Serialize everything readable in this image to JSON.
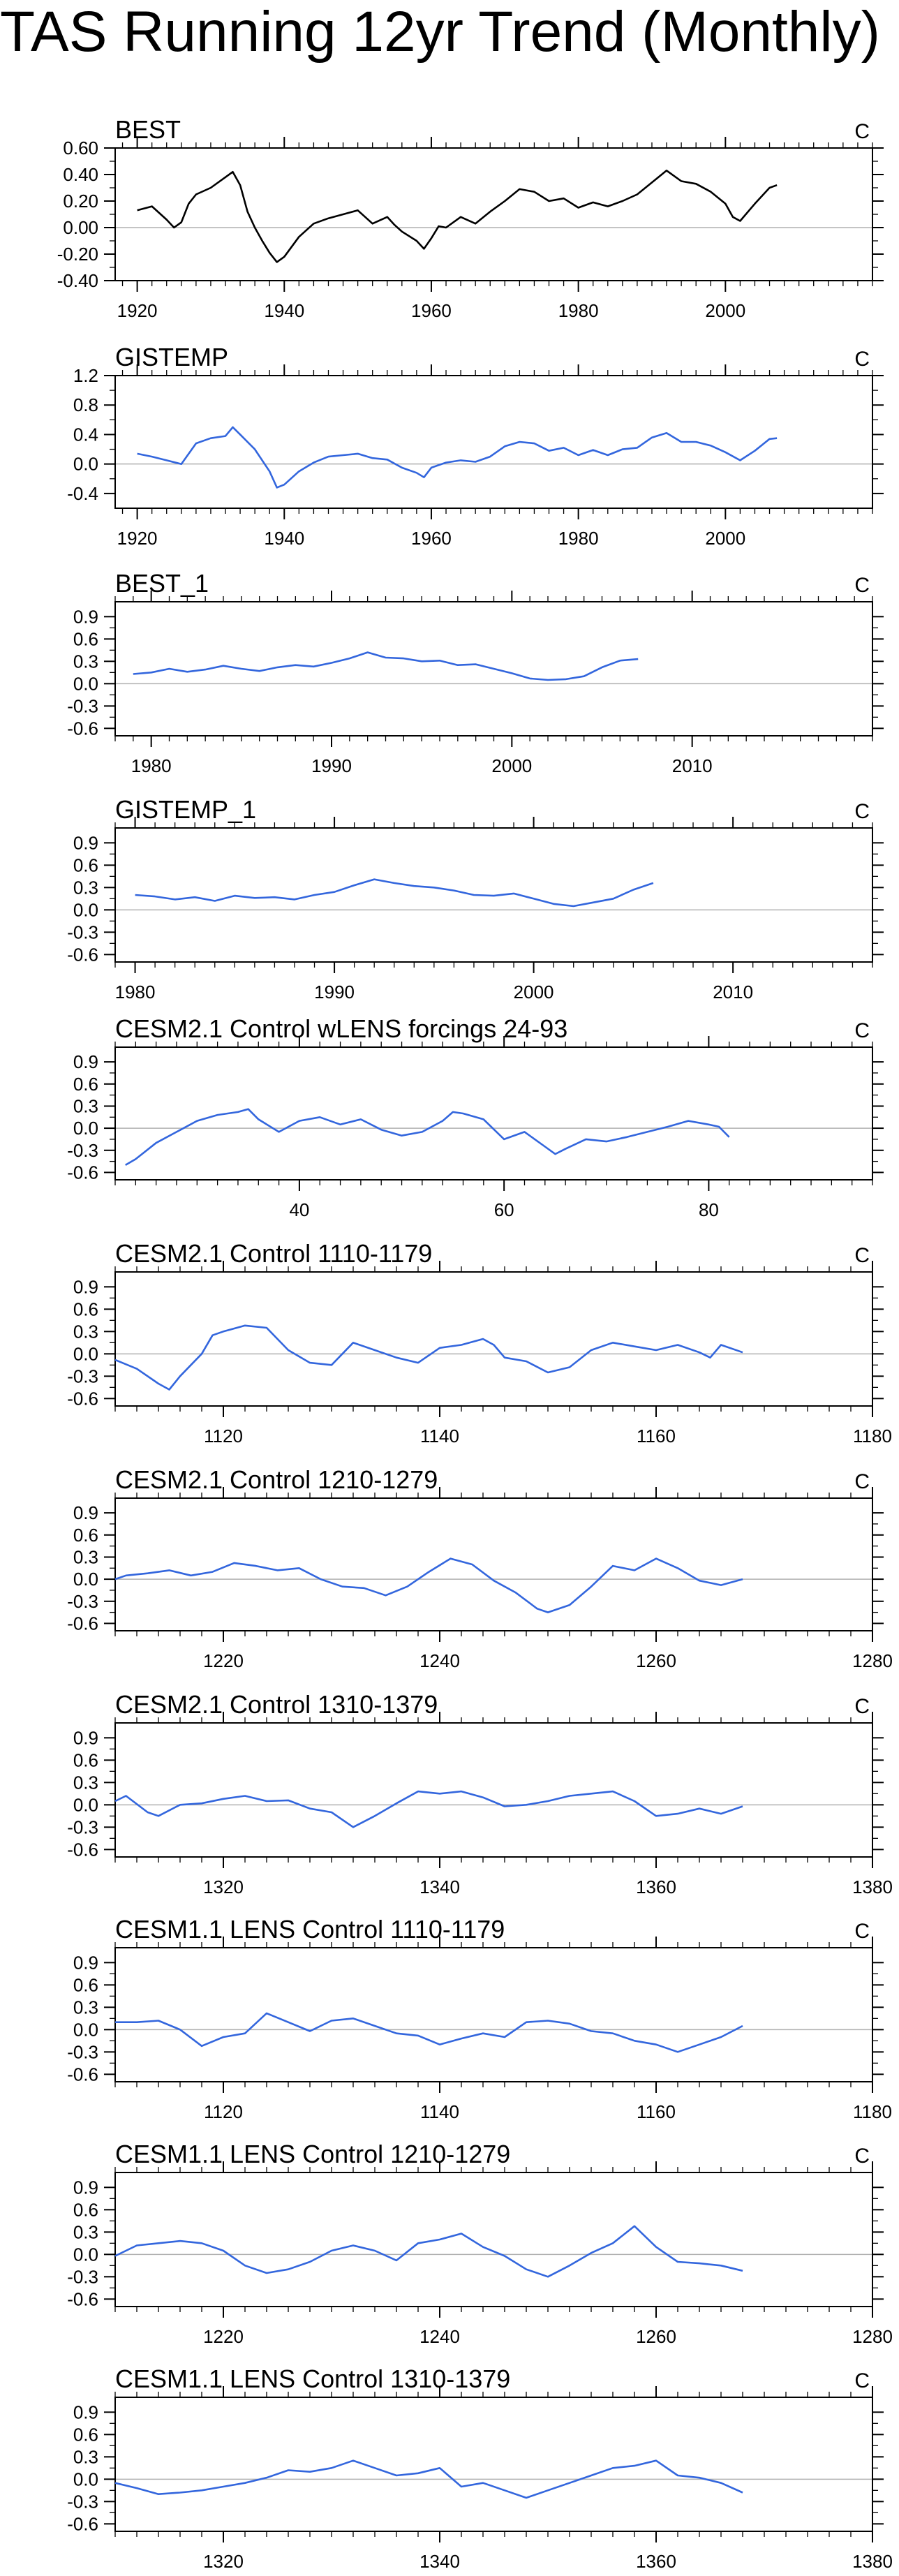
{
  "title": "TAS Running 12yr Trend (Monthly)",
  "colors": {
    "observed_line": "#000000",
    "model_line": "#3366dd",
    "zero_line": "#b0b0b0",
    "frame": "#000000"
  },
  "chart_data": [
    {
      "type": "line",
      "title": "BEST",
      "units_label": "C",
      "xlim": [
        1917,
        2020
      ],
      "ylim": [
        -0.4,
        0.6
      ],
      "xticks": [
        1920,
        1940,
        1960,
        1980,
        2000
      ],
      "yticks": [
        -0.4,
        -0.2,
        0.0,
        0.2,
        0.4,
        0.6
      ],
      "ytick_labels": [
        "-0.40",
        "-0.20",
        "0.00",
        "0.20",
        "0.40",
        "0.60"
      ],
      "line_color": "#000000",
      "x": [
        1920,
        1922,
        1924,
        1925,
        1926,
        1927,
        1928,
        1930,
        1932,
        1933,
        1934,
        1935,
        1936,
        1937,
        1938,
        1939,
        1940,
        1942,
        1944,
        1946,
        1948,
        1950,
        1952,
        1954,
        1955,
        1956,
        1958,
        1959,
        1960,
        1961,
        1962,
        1964,
        1966,
        1968,
        1970,
        1972,
        1974,
        1976,
        1978,
        1980,
        1982,
        1984,
        1986,
        1988,
        1990,
        1992,
        1994,
        1996,
        1998,
        2000,
        2001,
        2002,
        2004,
        2006,
        2007
      ],
      "y": [
        0.13,
        0.16,
        0.06,
        0.0,
        0.04,
        0.18,
        0.25,
        0.3,
        0.38,
        0.42,
        0.32,
        0.12,
        0.0,
        -0.1,
        -0.19,
        -0.26,
        -0.22,
        -0.07,
        0.03,
        0.07,
        0.1,
        0.13,
        0.03,
        0.08,
        0.02,
        -0.03,
        -0.1,
        -0.16,
        -0.08,
        0.01,
        0.0,
        0.08,
        0.03,
        0.12,
        0.2,
        0.29,
        0.27,
        0.2,
        0.22,
        0.15,
        0.19,
        0.16,
        0.2,
        0.25,
        0.34,
        0.43,
        0.35,
        0.33,
        0.27,
        0.18,
        0.08,
        0.05,
        0.18,
        0.3,
        0.32
      ]
    },
    {
      "type": "line",
      "title": "GISTEMP",
      "units_label": "C",
      "xlim": [
        1917,
        2020
      ],
      "ylim": [
        -0.6,
        1.2
      ],
      "xticks": [
        1920,
        1940,
        1960,
        1980,
        2000
      ],
      "yticks": [
        -0.4,
        0.0,
        0.4,
        0.8,
        1.2
      ],
      "ytick_labels": [
        "-0.4",
        "0.0",
        "0.4",
        "0.8",
        "1.2"
      ],
      "line_color": "#3366dd",
      "x": [
        1920,
        1922,
        1924,
        1926,
        1928,
        1930,
        1932,
        1933,
        1934,
        1936,
        1938,
        1939,
        1940,
        1942,
        1944,
        1946,
        1948,
        1950,
        1952,
        1954,
        1956,
        1958,
        1959,
        1960,
        1962,
        1964,
        1966,
        1968,
        1970,
        1972,
        1974,
        1976,
        1978,
        1980,
        1982,
        1984,
        1986,
        1988,
        1990,
        1992,
        1994,
        1996,
        1998,
        2000,
        2002,
        2004,
        2006,
        2007
      ],
      "y": [
        0.14,
        0.1,
        0.05,
        0.0,
        0.28,
        0.35,
        0.38,
        0.5,
        0.4,
        0.2,
        -0.1,
        -0.32,
        -0.28,
        -0.1,
        0.02,
        0.1,
        0.12,
        0.14,
        0.08,
        0.06,
        -0.05,
        -0.12,
        -0.18,
        -0.05,
        0.02,
        0.05,
        0.03,
        0.1,
        0.24,
        0.3,
        0.28,
        0.18,
        0.22,
        0.12,
        0.19,
        0.12,
        0.2,
        0.22,
        0.36,
        0.42,
        0.3,
        0.3,
        0.25,
        0.16,
        0.05,
        0.18,
        0.34,
        0.35
      ]
    },
    {
      "type": "line",
      "title": "BEST_1",
      "units_label": "C",
      "xlim": [
        1978,
        2020
      ],
      "ylim": [
        -0.7,
        1.1
      ],
      "xticks": [
        1980,
        1990,
        2000,
        2010
      ],
      "yticks": [
        -0.6,
        -0.3,
        0.0,
        0.3,
        0.6,
        0.9
      ],
      "ytick_labels": [
        "-0.6",
        "-0.3",
        "0.0",
        "0.3",
        "0.6",
        "0.9"
      ],
      "line_color": "#3366dd",
      "x": [
        1979,
        1980,
        1981,
        1982,
        1983,
        1984,
        1985,
        1986,
        1987,
        1988,
        1989,
        1990,
        1991,
        1992,
        1993,
        1994,
        1995,
        1996,
        1997,
        1998,
        1999,
        2000,
        2001,
        2002,
        2003,
        2004,
        2005,
        2006,
        2007
      ],
      "y": [
        0.13,
        0.15,
        0.2,
        0.16,
        0.19,
        0.24,
        0.2,
        0.17,
        0.22,
        0.25,
        0.23,
        0.28,
        0.34,
        0.42,
        0.35,
        0.34,
        0.3,
        0.31,
        0.25,
        0.26,
        0.2,
        0.14,
        0.07,
        0.05,
        0.06,
        0.1,
        0.22,
        0.31,
        0.33
      ]
    },
    {
      "type": "line",
      "title": "GISTEMP_1",
      "units_label": "C",
      "xlim": [
        1979,
        2017
      ],
      "ylim": [
        -0.7,
        1.1
      ],
      "xticks": [
        1980,
        1990,
        2000,
        2010
      ],
      "yticks": [
        -0.6,
        -0.3,
        0.0,
        0.3,
        0.6,
        0.9
      ],
      "ytick_labels": [
        "-0.6",
        "-0.3",
        "0.0",
        "0.3",
        "0.6",
        "0.9"
      ],
      "line_color": "#3366dd",
      "x": [
        1980,
        1981,
        1982,
        1983,
        1984,
        1985,
        1986,
        1987,
        1988,
        1989,
        1990,
        1991,
        1992,
        1993,
        1994,
        1995,
        1996,
        1997,
        1998,
        1999,
        2000,
        2001,
        2002,
        2003,
        2004,
        2005,
        2006
      ],
      "y": [
        0.2,
        0.18,
        0.14,
        0.17,
        0.12,
        0.19,
        0.16,
        0.17,
        0.14,
        0.2,
        0.24,
        0.33,
        0.41,
        0.36,
        0.32,
        0.3,
        0.26,
        0.2,
        0.19,
        0.22,
        0.15,
        0.08,
        0.05,
        0.1,
        0.15,
        0.27,
        0.36
      ]
    },
    {
      "type": "line",
      "title": "CESM2.1 Control wLENS forcings 24-93",
      "units_label": "C",
      "xlim": [
        22,
        96
      ],
      "ylim": [
        -0.7,
        1.1
      ],
      "xticks": [
        40,
        60,
        80
      ],
      "yticks": [
        -0.6,
        -0.3,
        0.0,
        0.3,
        0.6,
        0.9
      ],
      "ytick_labels": [
        "-0.6",
        "-0.3",
        "0.0",
        "0.3",
        "0.6",
        "0.9"
      ],
      "line_color": "#3366dd",
      "x": [
        23,
        24,
        26,
        28,
        30,
        32,
        34,
        35,
        36,
        38,
        40,
        42,
        44,
        46,
        48,
        50,
        52,
        54,
        55,
        56,
        58,
        60,
        62,
        64,
        65,
        66,
        68,
        70,
        72,
        74,
        76,
        78,
        80,
        81,
        82
      ],
      "y": [
        -0.5,
        -0.42,
        -0.2,
        -0.05,
        0.1,
        0.18,
        0.22,
        0.26,
        0.12,
        -0.05,
        0.1,
        0.15,
        0.05,
        0.12,
        -0.02,
        -0.1,
        -0.05,
        0.1,
        0.22,
        0.2,
        0.12,
        -0.15,
        -0.05,
        -0.25,
        -0.35,
        -0.28,
        -0.15,
        -0.18,
        -0.12,
        -0.05,
        0.02,
        0.1,
        0.05,
        0.02,
        -0.12
      ]
    },
    {
      "type": "line",
      "title": "CESM2.1 Control 1110-1179",
      "units_label": "C",
      "xlim": [
        1110,
        1180
      ],
      "ylim": [
        -0.7,
        1.1
      ],
      "xticks": [
        1120,
        1140,
        1160,
        1180
      ],
      "yticks": [
        -0.6,
        -0.3,
        0.0,
        0.3,
        0.6,
        0.9
      ],
      "ytick_labels": [
        "-0.6",
        "-0.3",
        "0.0",
        "0.3",
        "0.6",
        "0.9"
      ],
      "line_color": "#3366dd",
      "x": [
        1110,
        1112,
        1114,
        1115,
        1116,
        1118,
        1119,
        1120,
        1122,
        1124,
        1126,
        1128,
        1130,
        1132,
        1134,
        1136,
        1138,
        1140,
        1142,
        1144,
        1145,
        1146,
        1148,
        1150,
        1152,
        1154,
        1156,
        1158,
        1160,
        1162,
        1164,
        1165,
        1166,
        1168
      ],
      "y": [
        -0.08,
        -0.2,
        -0.4,
        -0.48,
        -0.3,
        0.0,
        0.25,
        0.3,
        0.38,
        0.35,
        0.05,
        -0.12,
        -0.15,
        0.15,
        0.05,
        -0.05,
        -0.12,
        0.08,
        0.12,
        0.2,
        0.12,
        -0.05,
        -0.1,
        -0.25,
        -0.18,
        0.05,
        0.15,
        0.1,
        0.05,
        0.12,
        0.02,
        -0.05,
        0.12,
        0.02
      ]
    },
    {
      "type": "line",
      "title": "CESM2.1 Control 1210-1279",
      "units_label": "C",
      "xlim": [
        1210,
        1280
      ],
      "ylim": [
        -0.7,
        1.1
      ],
      "xticks": [
        1220,
        1240,
        1260,
        1280
      ],
      "yticks": [
        -0.6,
        -0.3,
        0.0,
        0.3,
        0.6,
        0.9
      ],
      "ytick_labels": [
        "-0.6",
        "-0.3",
        "0.0",
        "0.3",
        "0.6",
        "0.9"
      ],
      "line_color": "#3366dd",
      "x": [
        1210,
        1211,
        1213,
        1215,
        1217,
        1219,
        1221,
        1223,
        1225,
        1227,
        1229,
        1231,
        1233,
        1235,
        1237,
        1239,
        1241,
        1243,
        1245,
        1247,
        1249,
        1250,
        1252,
        1254,
        1256,
        1258,
        1260,
        1262,
        1264,
        1266,
        1268
      ],
      "y": [
        0.0,
        0.05,
        0.08,
        0.12,
        0.05,
        0.1,
        0.22,
        0.18,
        0.12,
        0.15,
        0.0,
        -0.1,
        -0.12,
        -0.22,
        -0.1,
        0.1,
        0.28,
        0.2,
        -0.02,
        -0.18,
        -0.4,
        -0.45,
        -0.35,
        -0.1,
        0.18,
        0.12,
        0.28,
        0.15,
        -0.02,
        -0.08,
        0.0
      ]
    },
    {
      "type": "line",
      "title": "CESM2.1 Control 1310-1379",
      "units_label": "C",
      "xlim": [
        1310,
        1380
      ],
      "ylim": [
        -0.7,
        1.1
      ],
      "xticks": [
        1320,
        1340,
        1360,
        1380
      ],
      "yticks": [
        -0.6,
        -0.3,
        0.0,
        0.3,
        0.6,
        0.9
      ],
      "ytick_labels": [
        "-0.6",
        "-0.3",
        "0.0",
        "0.3",
        "0.6",
        "0.9"
      ],
      "line_color": "#3366dd",
      "x": [
        1310,
        1311,
        1313,
        1314,
        1316,
        1318,
        1320,
        1322,
        1324,
        1326,
        1328,
        1330,
        1332,
        1334,
        1336,
        1338,
        1340,
        1342,
        1344,
        1346,
        1348,
        1350,
        1352,
        1354,
        1356,
        1358,
        1360,
        1362,
        1364,
        1366,
        1368
      ],
      "y": [
        0.05,
        0.12,
        -0.1,
        -0.15,
        0.0,
        0.02,
        0.08,
        0.12,
        0.05,
        0.06,
        -0.05,
        -0.1,
        -0.3,
        -0.15,
        0.02,
        0.18,
        0.15,
        0.18,
        0.1,
        -0.02,
        0.0,
        0.05,
        0.12,
        0.15,
        0.18,
        0.05,
        -0.15,
        -0.12,
        -0.05,
        -0.12,
        -0.02
      ]
    },
    {
      "type": "line",
      "title": "CESM1.1 LENS Control 1110-1179",
      "units_label": "C",
      "xlim": [
        1110,
        1180
      ],
      "ylim": [
        -0.7,
        1.1
      ],
      "xticks": [
        1120,
        1140,
        1160,
        1180
      ],
      "yticks": [
        -0.6,
        -0.3,
        0.0,
        0.3,
        0.6,
        0.9
      ],
      "ytick_labels": [
        "-0.6",
        "-0.3",
        "0.0",
        "0.3",
        "0.6",
        "0.9"
      ],
      "line_color": "#3366dd",
      "x": [
        1110,
        1112,
        1114,
        1116,
        1118,
        1120,
        1122,
        1124,
        1126,
        1128,
        1130,
        1132,
        1134,
        1136,
        1138,
        1140,
        1142,
        1144,
        1146,
        1148,
        1150,
        1152,
        1154,
        1156,
        1158,
        1160,
        1162,
        1164,
        1166,
        1168
      ],
      "y": [
        0.1,
        0.1,
        0.12,
        0.0,
        -0.22,
        -0.1,
        -0.05,
        0.22,
        0.1,
        -0.02,
        0.12,
        0.15,
        0.05,
        -0.05,
        -0.08,
        -0.2,
        -0.12,
        -0.05,
        -0.1,
        0.1,
        0.12,
        0.08,
        -0.02,
        -0.05,
        -0.15,
        -0.2,
        -0.3,
        -0.2,
        -0.1,
        0.05
      ]
    },
    {
      "type": "line",
      "title": "CESM1.1 LENS Control 1210-1279",
      "units_label": "C",
      "xlim": [
        1210,
        1280
      ],
      "ylim": [
        -0.7,
        1.1
      ],
      "xticks": [
        1220,
        1240,
        1260,
        1280
      ],
      "yticks": [
        -0.6,
        -0.3,
        0.0,
        0.3,
        0.6,
        0.9
      ],
      "ytick_labels": [
        "-0.6",
        "-0.3",
        "0.0",
        "0.3",
        "0.6",
        "0.9"
      ],
      "line_color": "#3366dd",
      "x": [
        1210,
        1212,
        1214,
        1216,
        1218,
        1220,
        1222,
        1224,
        1226,
        1228,
        1230,
        1232,
        1234,
        1236,
        1238,
        1240,
        1242,
        1244,
        1246,
        1248,
        1250,
        1252,
        1254,
        1256,
        1258,
        1260,
        1262,
        1264,
        1266,
        1268
      ],
      "y": [
        -0.02,
        0.12,
        0.15,
        0.18,
        0.15,
        0.05,
        -0.15,
        -0.25,
        -0.2,
        -0.1,
        0.05,
        0.12,
        0.05,
        -0.08,
        0.15,
        0.2,
        0.28,
        0.1,
        -0.02,
        -0.2,
        -0.3,
        -0.15,
        0.02,
        0.15,
        0.38,
        0.1,
        -0.1,
        -0.12,
        -0.15,
        -0.22
      ]
    },
    {
      "type": "line",
      "title": "CESM1.1 LENS Control 1310-1379",
      "units_label": "C",
      "xlim": [
        1310,
        1380
      ],
      "ylim": [
        -0.7,
        1.1
      ],
      "xticks": [
        1320,
        1340,
        1360,
        1380
      ],
      "yticks": [
        -0.6,
        -0.3,
        0.0,
        0.3,
        0.6,
        0.9
      ],
      "ytick_labels": [
        "-0.6",
        "-0.3",
        "0.0",
        "0.3",
        "0.6",
        "0.9"
      ],
      "line_color": "#3366dd",
      "x": [
        1310,
        1312,
        1314,
        1316,
        1318,
        1320,
        1322,
        1324,
        1326,
        1328,
        1330,
        1332,
        1334,
        1336,
        1338,
        1340,
        1342,
        1344,
        1346,
        1348,
        1350,
        1352,
        1354,
        1356,
        1358,
        1360,
        1362,
        1364,
        1366,
        1368
      ],
      "y": [
        -0.05,
        -0.12,
        -0.2,
        -0.18,
        -0.15,
        -0.1,
        -0.05,
        0.02,
        0.12,
        0.1,
        0.15,
        0.25,
        0.15,
        0.05,
        0.08,
        0.15,
        -0.1,
        -0.05,
        -0.15,
        -0.25,
        -0.15,
        -0.05,
        0.05,
        0.15,
        0.18,
        0.25,
        0.05,
        0.02,
        -0.05,
        -0.18
      ]
    }
  ]
}
